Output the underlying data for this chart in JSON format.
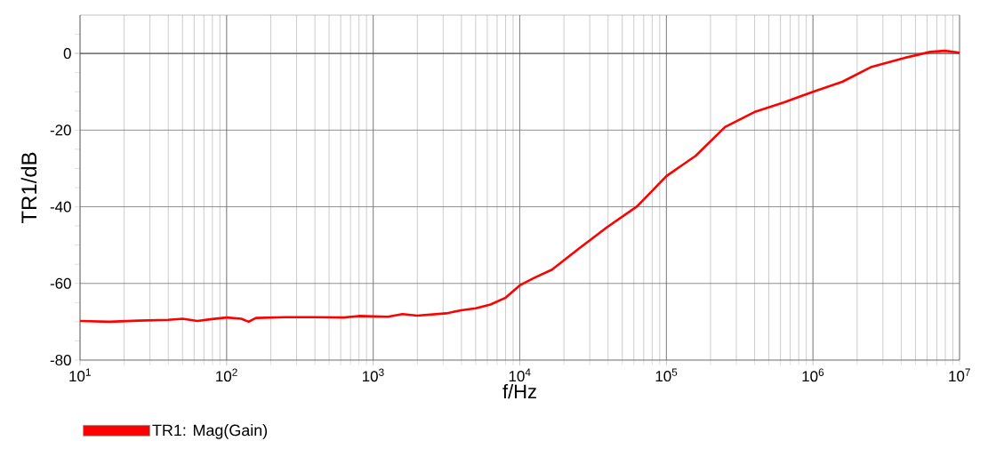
{
  "chart_data": {
    "type": "line",
    "xlabel": "f/Hz",
    "ylabel": "TR1/dB",
    "log": "x",
    "grid": true,
    "legend": "bottom left",
    "marker": "none",
    "line_style": "solid",
    "xlim": [
      10,
      10000000
    ],
    "ylim": [
      -80,
      10
    ],
    "xticks": [
      {
        "value": 10,
        "label": "10$^{1}$"
      },
      {
        "value": 100,
        "label": "10$^{2}$"
      },
      {
        "value": 1000,
        "label": "10$^{3}$"
      },
      {
        "value": 10000,
        "label": "10$^{4}$"
      },
      {
        "value": 100000,
        "label": "10$^{5}$"
      },
      {
        "value": 1000000,
        "label": "10$^{6}$"
      },
      {
        "value": 10000000,
        "label": "10$^{7}$"
      }
    ],
    "yticks": [
      -80,
      {
        "value": -75,
        "label": null
      },
      {
        "value": -70,
        "label": null
      },
      {
        "value": -65,
        "label": null
      },
      -60,
      {
        "value": -55,
        "label": null
      },
      {
        "value": -50,
        "label": null
      },
      {
        "value": -45,
        "label": null
      },
      -40,
      {
        "value": -35,
        "label": null
      },
      {
        "value": -30,
        "label": null
      },
      {
        "value": -25,
        "label": null
      },
      -20,
      {
        "value": -15,
        "label": null
      },
      {
        "value": -10,
        "label": null
      },
      {
        "value": -5,
        "label": null
      },
      0,
      {
        "value": 5,
        "label": null
      }
    ],
    "series": [
      {
        "name": "TR1: Mag(Gain)",
        "color": "#ff0000",
        "x": [
          10,
          15.85,
          25.12,
          39.81,
          50.12,
          63.1,
          79.43,
          100,
          125.9,
          141.3,
          158.5,
          251.2,
          398.1,
          631,
          794.3,
          1000,
          1259,
          1585,
          1995,
          3162,
          3981,
          5012,
          6310,
          7943,
          10000,
          12590,
          16600,
          25120,
          39810,
          63100,
          100000,
          158500,
          251200,
          398100,
          631000,
          1000000,
          1585000,
          2512000,
          3981000,
          6310000,
          7943000,
          10000000
        ],
        "values": [
          -69.8,
          -70.0,
          -69.7,
          -69.5,
          -69.2,
          -69.8,
          -69.3,
          -68.9,
          -69.2,
          -70.0,
          -69.0,
          -68.8,
          -68.8,
          -68.9,
          -68.5,
          -68.6,
          -68.7,
          -68.0,
          -68.4,
          -67.8,
          -67.0,
          -66.5,
          -65.5,
          -63.8,
          -60.5,
          -58.5,
          -56.4,
          -51.0,
          -45.2,
          -39.9,
          -32.0,
          -26.7,
          -19.2,
          -15.3,
          -12.8,
          -10.0,
          -7.4,
          -3.5,
          -1.4,
          0.4,
          0.7,
          0.2
        ]
      }
    ]
  }
}
